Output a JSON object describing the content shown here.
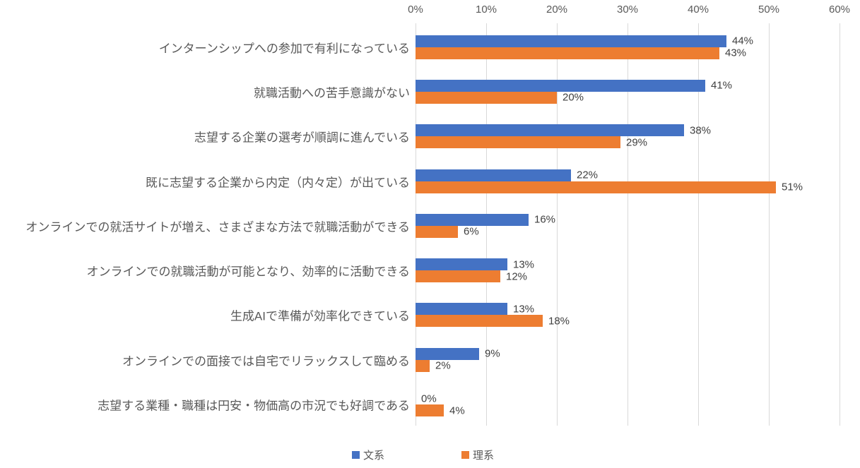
{
  "chart_data": {
    "type": "bar",
    "orientation": "horizontal",
    "title": "",
    "categories": [
      "インターンシップへの参加で有利になっている",
      "就職活動への苦手意識がない",
      "志望する企業の選考が順調に進んでいる",
      "既に志望する企業から内定（内々定）が出ている",
      "オンラインでの就活サイトが増え、さまざまな方法で就職活動ができる",
      "オンラインでの就職活動が可能となり、効率的に活動できる",
      "生成AIで準備が効率化できている",
      "オンラインでの面接では自宅でリラックスして臨める",
      "志望する業種・職種は円安・物価高の市況でも好調である"
    ],
    "series": [
      {
        "key": "bunkei",
        "name": "文系",
        "color": "#4472C4",
        "values": [
          44,
          41,
          38,
          22,
          16,
          13,
          13,
          9,
          0
        ],
        "labels": [
          "44%",
          "41%",
          "38%",
          "22%",
          "16%",
          "13%",
          "13%",
          "9%",
          "0%"
        ]
      },
      {
        "key": "rikei",
        "name": "理系",
        "color": "#ED7D31",
        "values": [
          43,
          20,
          29,
          51,
          6,
          12,
          18,
          2,
          4
        ],
        "labels": [
          "43%",
          "20%",
          "29%",
          "51%",
          "6%",
          "12%",
          "18%",
          "2%",
          "4%"
        ]
      }
    ],
    "x_axis": {
      "position": "top",
      "min": 0,
      "max": 60,
      "tick_step": 10,
      "ticks": [
        "0%",
        "10%",
        "20%",
        "30%",
        "40%",
        "50%",
        "60%"
      ]
    },
    "grid": true,
    "legend_position": "bottom",
    "colors": {
      "grid": "#D9D9D9",
      "axis_text": "#595959",
      "category_text": "#595959",
      "value_text": "#404040",
      "background": "#FFFFFF"
    }
  }
}
